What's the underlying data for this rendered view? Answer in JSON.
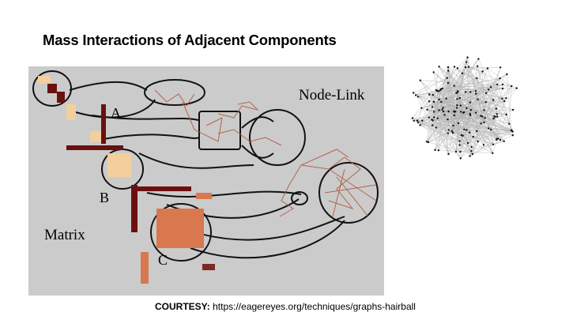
{
  "slide": {
    "title": "Mass Interactions of Adjacent Components"
  },
  "figure": {
    "node_link_label": "Node-Link",
    "matrix_label": "Matrix",
    "label_a": "A",
    "label_b": "B",
    "label_c": "C"
  },
  "courtesy": {
    "prefix": "COURTESY:",
    "url": "https://eagereyes.org/techniques/graphs-hairball"
  },
  "colors": {
    "figure_background": "#cbcbcb",
    "matrix_dark": "#6b1010",
    "matrix_light": "#f3cf9c",
    "matrix_orange": "#d9774f",
    "node_link_edge": "#b05a40"
  }
}
